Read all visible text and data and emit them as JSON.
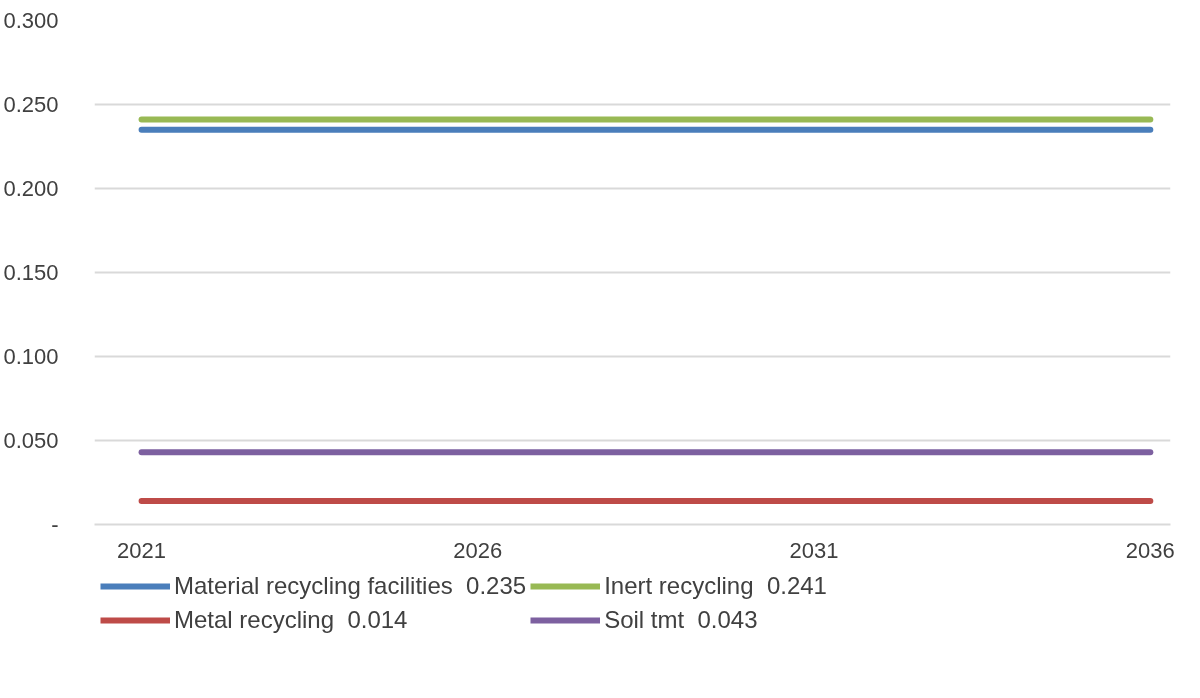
{
  "chart_data": {
    "type": "line",
    "x": [
      2021,
      2036
    ],
    "series": [
      {
        "name": "Material recycling facilities  0.235",
        "color": "#4a7ebb",
        "values": [
          0.235,
          0.235
        ]
      },
      {
        "name": "Metal recycling  0.014",
        "color": "#be4b48",
        "values": [
          0.014,
          0.014
        ]
      },
      {
        "name": "Inert recycling  0.241",
        "color": "#98b954",
        "values": [
          0.241,
          0.241
        ]
      },
      {
        "name": "Soil tmt  0.043",
        "color": "#7d60a0",
        "values": [
          0.043,
          0.043
        ]
      }
    ],
    "xlim": [
      2020.3,
      2036.3
    ],
    "xticks": [
      2021,
      2026,
      2031,
      2036
    ],
    "ylim": [
      0,
      0.3
    ],
    "yticks": [
      {
        "value": 0,
        "label": "-"
      },
      {
        "value": 0.05,
        "label": "0.050"
      },
      {
        "value": 0.1,
        "label": "0.100"
      },
      {
        "value": 0.15,
        "label": "0.150"
      },
      {
        "value": 0.2,
        "label": "0.200"
      },
      {
        "value": 0.25,
        "label": "0.250"
      },
      {
        "value": 0.3,
        "label": "0.300"
      }
    ],
    "grid": "y",
    "legend": "bottom",
    "marker": "none",
    "line_style": "solid"
  }
}
